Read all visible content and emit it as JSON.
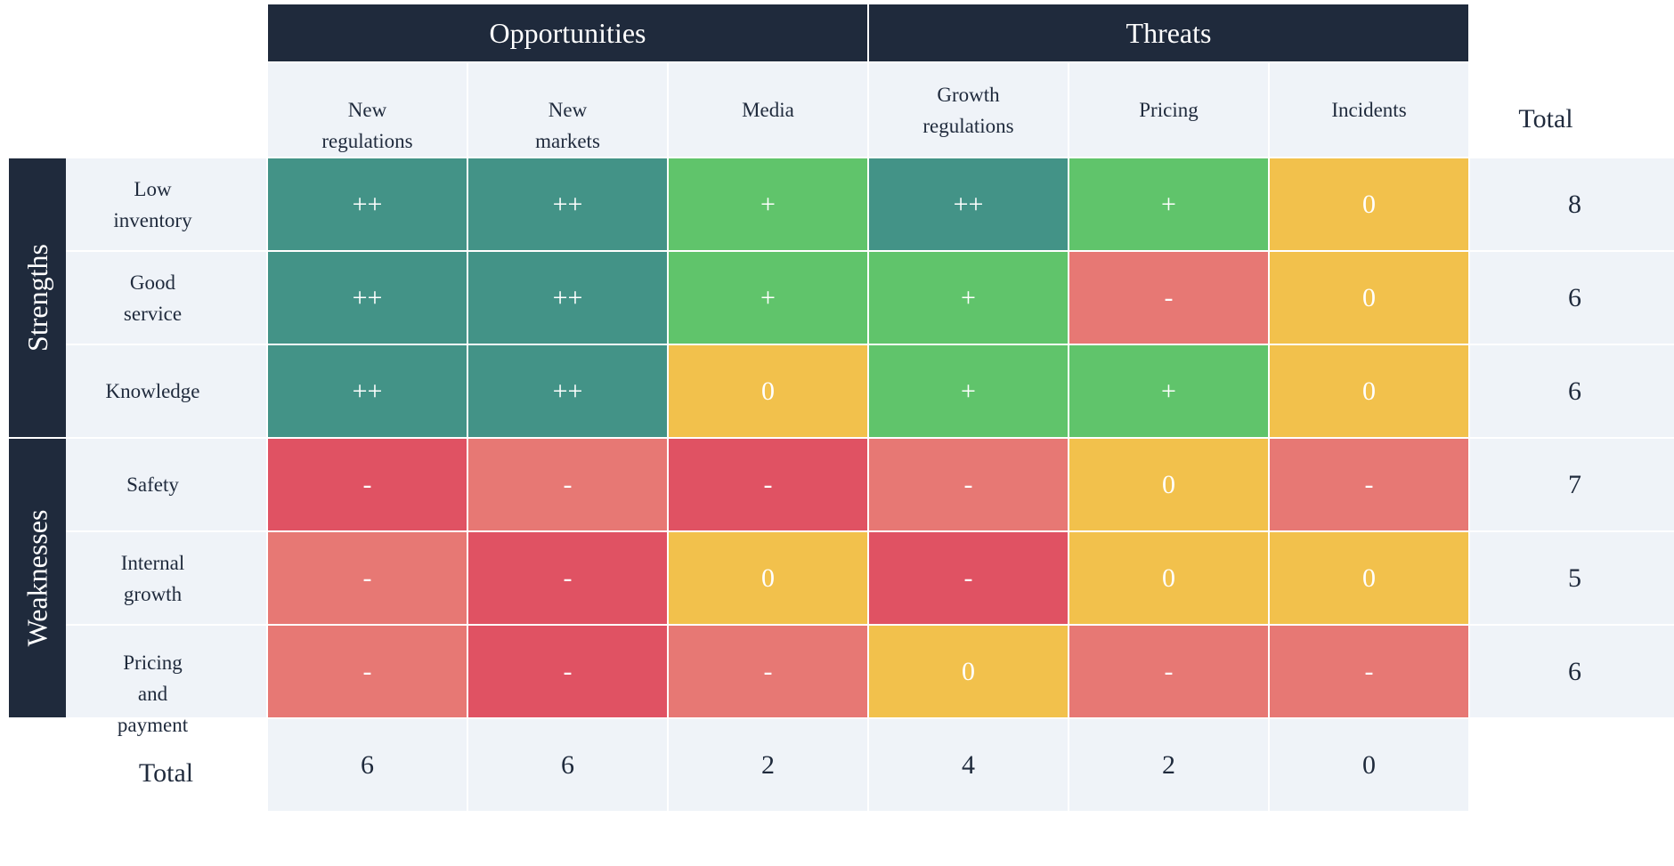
{
  "matrix": {
    "column_groups": [
      {
        "label": "Opportunities",
        "span": 3
      },
      {
        "label": "Threats",
        "span": 3
      }
    ],
    "columns": [
      "New\nregulations",
      "New\nmarkets",
      "Media",
      "Growth\nregulations",
      "Pricing",
      "Incidents"
    ],
    "row_groups": [
      {
        "label": "Strengths",
        "span": 3
      },
      {
        "label": "Weaknesses",
        "span": 3
      }
    ],
    "rows": [
      {
        "label": "Low\ninventory",
        "cells": [
          "++",
          "++",
          "+",
          "++",
          "+",
          "0"
        ],
        "total": "8"
      },
      {
        "label": "Good\nservice",
        "cells": [
          "++",
          "++",
          "+",
          "+",
          "-",
          "0"
        ],
        "total": "6"
      },
      {
        "label": "Knowledge",
        "cells": [
          "++",
          "++",
          "0",
          "+",
          "+",
          "0"
        ],
        "total": "6"
      },
      {
        "label": "Safety",
        "cells": [
          "-",
          "-",
          "-",
          "-",
          "0",
          "-"
        ],
        "total": "7"
      },
      {
        "label": "Internal\ngrowth",
        "cells": [
          "-",
          "-",
          "0",
          "-",
          "0",
          "0"
        ],
        "total": "5"
      },
      {
        "label": "Pricing\nand\npayment",
        "cells": [
          "-",
          "-",
          "-",
          "0",
          "-",
          "-"
        ],
        "total": "6"
      }
    ],
    "column_totals": [
      "6",
      "6",
      "2",
      "4",
      "2",
      "0"
    ],
    "total_label": "Total"
  },
  "score_colors": {
    "strong_positive": "#439387",
    "positive": "#60c46b",
    "neutral": "#f2c14c",
    "negative": "#e77874",
    "strong_negative": "#e05263"
  },
  "cell_score_levels": [
    [
      "strong_positive",
      "strong_positive",
      "positive",
      "strong_positive",
      "positive",
      "neutral"
    ],
    [
      "strong_positive",
      "strong_positive",
      "positive",
      "positive",
      "negative",
      "neutral"
    ],
    [
      "strong_positive",
      "strong_positive",
      "neutral",
      "positive",
      "positive",
      "neutral"
    ],
    [
      "strong_negative",
      "negative",
      "strong_negative",
      "negative",
      "neutral",
      "negative"
    ],
    [
      "negative",
      "strong_negative",
      "neutral",
      "strong_negative",
      "neutral",
      "neutral"
    ],
    [
      "negative",
      "strong_negative",
      "negative",
      "neutral",
      "negative",
      "negative"
    ]
  ],
  "colors": {
    "header_bg": "#1f2a3c",
    "header_text": "#ffffff",
    "label_bg": "#eff3f8"
  }
}
